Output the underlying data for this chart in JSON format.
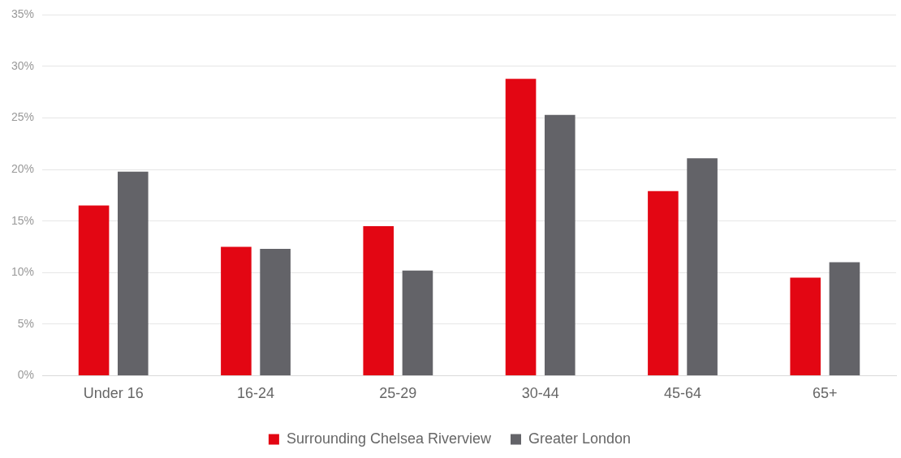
{
  "chart_data": {
    "type": "bar",
    "categories": [
      "Under 16",
      "16-24",
      "25-29",
      "30-44",
      "45-64",
      "65+"
    ],
    "series": [
      {
        "name": "Surrounding Chelsea Riverview",
        "color": "#e30613",
        "values": [
          16.5,
          12.5,
          14.5,
          28.8,
          17.9,
          9.5
        ]
      },
      {
        "name": "Greater London",
        "color": "#636368",
        "values": [
          19.8,
          12.3,
          10.2,
          25.3,
          21.1,
          11.0
        ]
      }
    ],
    "ylim": [
      0,
      35
    ],
    "yticks": [
      {
        "value": 0,
        "label": "0%"
      },
      {
        "value": 5,
        "label": "5%"
      },
      {
        "value": 10,
        "label": "10%"
      },
      {
        "value": 15,
        "label": "15%"
      },
      {
        "value": 20,
        "label": "20%"
      },
      {
        "value": 25,
        "label": "25%"
      },
      {
        "value": 30,
        "label": "30%"
      },
      {
        "value": 35,
        "label": "35%"
      }
    ],
    "grid": "y",
    "legend": "bottom"
  }
}
